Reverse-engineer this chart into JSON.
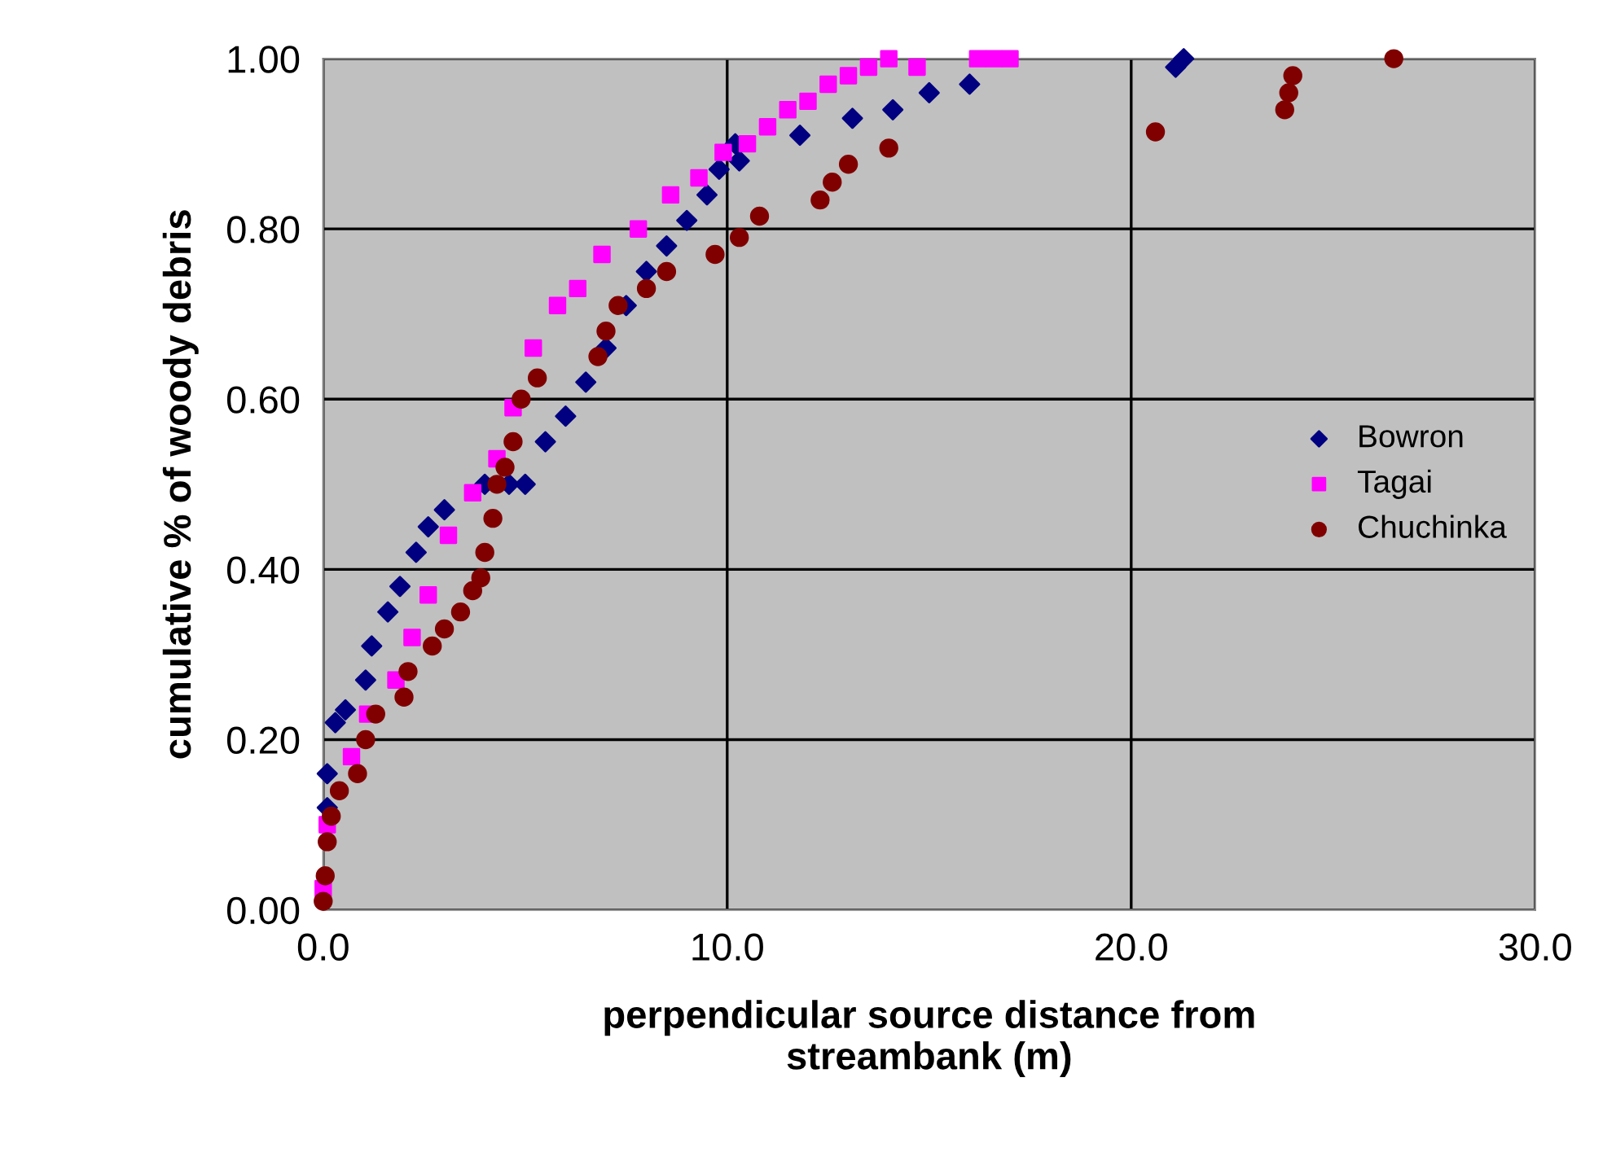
{
  "chart_data": {
    "type": "scatter",
    "xlabel": "perpendicular source distance from\nstreambank (m)",
    "ylabel": "cumulative % of woody debris",
    "xlim": [
      0,
      30
    ],
    "ylim": [
      0,
      1
    ],
    "xticks": [
      {
        "value": 0,
        "label": "0.0"
      },
      {
        "value": 10,
        "label": "10.0"
      },
      {
        "value": 20,
        "label": "20.0"
      },
      {
        "value": 30,
        "label": "30.0"
      }
    ],
    "yticks": [
      {
        "value": 0,
        "label": "0.00"
      },
      {
        "value": 0.2,
        "label": "0.20"
      },
      {
        "value": 0.4,
        "label": "0.40"
      },
      {
        "value": 0.6,
        "label": "0.60"
      },
      {
        "value": 0.8,
        "label": "0.80"
      },
      {
        "value": 1.0,
        "label": "1.00"
      }
    ],
    "grid": true,
    "legend": "right",
    "series": [
      {
        "name": "Bowron",
        "color": "#000080",
        "marker": "diamond",
        "x": [
          0.1,
          0.1,
          0.3,
          0.55,
          1.05,
          1.2,
          1.6,
          1.9,
          2.3,
          2.6,
          3.0,
          4.0,
          4.6,
          5.0,
          5.5,
          6.0,
          6.5,
          7.0,
          7.5,
          8.0,
          8.5,
          9.0,
          9.5,
          9.8,
          10.2,
          10.3,
          11.8,
          13.1,
          14.1,
          15.0,
          16.0,
          21.1,
          21.3
        ],
        "values": [
          0.12,
          0.16,
          0.22,
          0.235,
          0.27,
          0.31,
          0.35,
          0.38,
          0.42,
          0.45,
          0.47,
          0.5,
          0.5,
          0.5,
          0.55,
          0.58,
          0.62,
          0.66,
          0.71,
          0.75,
          0.78,
          0.81,
          0.84,
          0.87,
          0.9,
          0.88,
          0.91,
          0.93,
          0.94,
          0.96,
          0.97,
          0.99,
          1.0
        ]
      },
      {
        "name": "Tagai",
        "color": "#ff00ff",
        "marker": "square",
        "x": [
          0.0,
          0.1,
          0.7,
          1.1,
          1.8,
          2.2,
          2.6,
          3.1,
          3.7,
          4.3,
          4.7,
          5.2,
          5.8,
          6.3,
          6.9,
          7.8,
          8.6,
          9.3,
          9.9,
          10.5,
          11.0,
          11.5,
          12.0,
          12.5,
          13.0,
          13.5,
          14.0,
          14.7,
          16.2,
          16.6,
          17.0
        ],
        "values": [
          0.025,
          0.1,
          0.18,
          0.23,
          0.27,
          0.32,
          0.37,
          0.44,
          0.49,
          0.53,
          0.59,
          0.66,
          0.71,
          0.73,
          0.77,
          0.8,
          0.84,
          0.86,
          0.89,
          0.9,
          0.92,
          0.94,
          0.95,
          0.97,
          0.98,
          0.99,
          1.0,
          0.99,
          1.0,
          1.0,
          1.0
        ]
      },
      {
        "name": "Chuchinka",
        "color": "#800000",
        "marker": "circle",
        "x": [
          0.0,
          0.05,
          0.1,
          0.2,
          0.4,
          0.85,
          1.05,
          1.3,
          2.0,
          2.1,
          2.7,
          3.0,
          3.4,
          3.7,
          3.9,
          4.0,
          4.2,
          4.3,
          4.5,
          4.7,
          4.9,
          5.3,
          6.8,
          7.0,
          7.3,
          8.0,
          8.5,
          9.7,
          10.3,
          10.8,
          12.3,
          12.6,
          13.0,
          14.0,
          20.6,
          23.8,
          23.9,
          24.0,
          26.5
        ],
        "values": [
          0.01,
          0.04,
          0.08,
          0.11,
          0.14,
          0.16,
          0.2,
          0.23,
          0.25,
          0.28,
          0.31,
          0.33,
          0.35,
          0.375,
          0.39,
          0.42,
          0.46,
          0.5,
          0.52,
          0.55,
          0.6,
          0.625,
          0.65,
          0.68,
          0.71,
          0.73,
          0.75,
          0.77,
          0.79,
          0.815,
          0.834,
          0.855,
          0.876,
          0.895,
          0.914,
          0.94,
          0.96,
          0.98,
          1.0
        ]
      }
    ]
  }
}
